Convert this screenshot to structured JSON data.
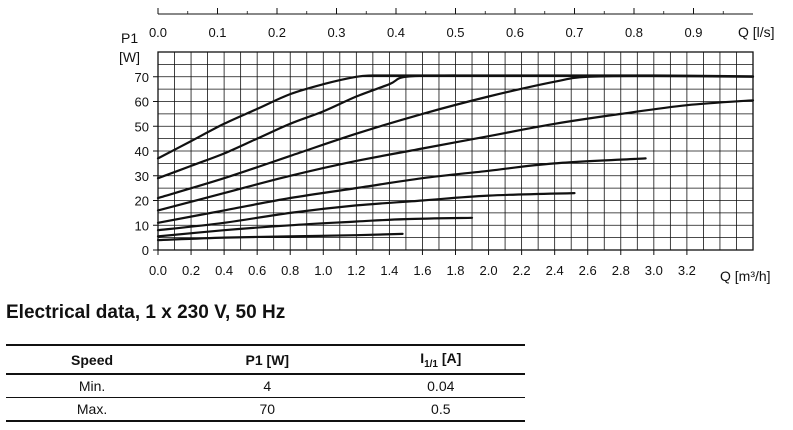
{
  "chart_data": {
    "type": "line",
    "ylabel_top": "P1",
    "ylabel_unit": "[W]",
    "x_top_label": "Q [l/s]",
    "x_bottom_label": "Q [m³/h]",
    "x_bottom_ticks": [
      "0.0",
      "0.2",
      "0.4",
      "0.6",
      "0.8",
      "1.0",
      "1.2",
      "1.4",
      "1.6",
      "1.8",
      "2.0",
      "2.2",
      "2.4",
      "2.6",
      "2.8",
      "3.0",
      "3.2"
    ],
    "x_top_ticks": [
      "0.0",
      "0.1",
      "0.2",
      "0.3",
      "0.4",
      "0.5",
      "0.6",
      "0.7",
      "0.8",
      "0.9"
    ],
    "y_ticks": [
      "0",
      "10",
      "20",
      "30",
      "40",
      "50",
      "60",
      "70"
    ],
    "xlim": [
      0,
      3.6
    ],
    "ylim": [
      0,
      80
    ],
    "grid": true,
    "series": [
      {
        "x": [
          0,
          0.2,
          0.4,
          0.6,
          0.8,
          1.0,
          1.2,
          1.3,
          1.5,
          1.8
        ],
        "y": [
          37,
          44,
          51,
          57,
          63,
          67,
          70,
          70.5,
          70.5,
          70.5
        ]
      },
      {
        "x": [
          0,
          0.2,
          0.4,
          0.6,
          0.8,
          1.0,
          1.2,
          1.4,
          1.5,
          1.8,
          2.0,
          2.4,
          3.0,
          3.6
        ],
        "y": [
          29,
          34,
          39,
          45,
          51,
          56,
          62,
          67,
          70,
          70.5,
          70.5,
          70.5,
          70.5,
          70.2
        ]
      },
      {
        "x": [
          0,
          0.4,
          0.8,
          1.2,
          1.6,
          2.0,
          2.4,
          2.6,
          3.0,
          3.6
        ],
        "y": [
          21,
          29,
          38,
          47,
          55,
          62,
          68,
          70,
          70.3,
          70
        ]
      },
      {
        "x": [
          0,
          0.4,
          0.8,
          1.2,
          1.6,
          2.0,
          2.4,
          2.8,
          3.2,
          3.6
        ],
        "y": [
          16,
          23,
          30,
          36,
          41,
          46,
          51,
          55,
          58.5,
          60.5
        ]
      },
      {
        "x": [
          0,
          0.4,
          0.8,
          1.2,
          1.6,
          2.0,
          2.4,
          2.95
        ],
        "y": [
          11,
          16,
          21,
          25,
          29,
          32,
          35,
          37
        ]
      },
      {
        "x": [
          0,
          0.4,
          0.8,
          1.2,
          1.6,
          2.0,
          2.52
        ],
        "y": [
          8,
          11,
          15,
          18,
          20,
          22,
          23
        ]
      },
      {
        "x": [
          0,
          0.4,
          0.8,
          1.2,
          1.5,
          1.9
        ],
        "y": [
          5.5,
          8,
          10,
          11.5,
          12.5,
          13
        ]
      },
      {
        "x": [
          0,
          0.4,
          0.8,
          1.2,
          1.48
        ],
        "y": [
          4,
          5,
          5.5,
          6,
          6.5
        ]
      }
    ],
    "colors": {
      "line": "#111111",
      "grid": "#111111",
      "text": "#111111"
    }
  },
  "section": {
    "title": "Electrical data, 1 x 230 V, 50 Hz"
  },
  "table": {
    "headers": {
      "speed": "Speed",
      "p1": "P1 [W]",
      "current_base": "I",
      "current_sub": "1/1",
      "current_unit": " [A]"
    },
    "rows": [
      {
        "speed": "Min.",
        "p1": "4",
        "current": "0.04"
      },
      {
        "speed": "Max.",
        "p1": "70",
        "current": "0.5"
      }
    ]
  }
}
